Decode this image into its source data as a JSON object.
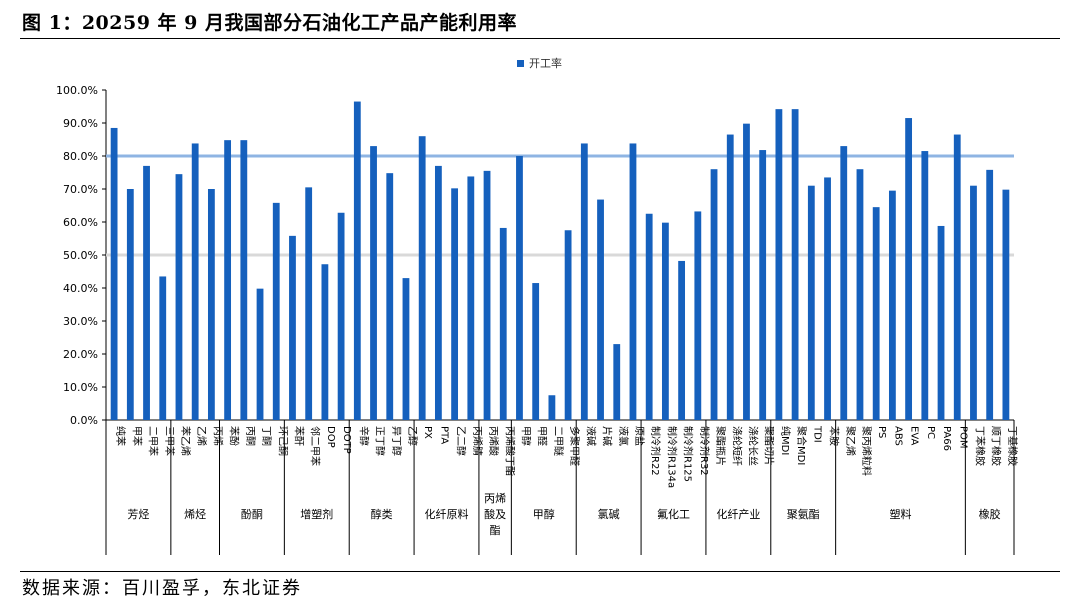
{
  "figure_title": "图 1：20259 年 9 月我国部分石油化工产品产能利用率",
  "source_note": "数据来源：百川盈孚，东北证券",
  "chart_data": {
    "type": "bar",
    "series": [
      {
        "name": "开工率",
        "color": "#1560bd"
      }
    ],
    "ylim": [
      0,
      100
    ],
    "yticks": [
      "0.0%",
      "10.0%",
      "20.0%",
      "30.0%",
      "40.0%",
      "50.0%",
      "60.0%",
      "70.0%",
      "80.0%",
      "90.0%",
      "100.0%"
    ],
    "reference_lines": [
      {
        "value": 80,
        "color": "#8eb4e3"
      },
      {
        "value": 50,
        "color": "#d9d9d9"
      }
    ],
    "groups": [
      {
        "name": "芳烃",
        "items": [
          {
            "label": "纯苯",
            "value": 88.5
          },
          {
            "label": "甲苯",
            "value": 70.0
          },
          {
            "label": "二甲苯",
            "value": 77.0
          },
          {
            "label": "三甲苯",
            "value": 43.5
          }
        ]
      },
      {
        "name": "烯烃",
        "items": [
          {
            "label": "苯乙烯",
            "value": 74.5
          },
          {
            "label": "乙烯",
            "value": 83.8
          },
          {
            "label": "丙烯",
            "value": 70.0
          }
        ]
      },
      {
        "name": "酚酮",
        "items": [
          {
            "label": "苯酚",
            "value": 84.8
          },
          {
            "label": "丙酮",
            "value": 84.8
          },
          {
            "label": "丁酮",
            "value": 39.8
          },
          {
            "label": "环己酮",
            "value": 65.8
          }
        ]
      },
      {
        "name": "增塑剂",
        "items": [
          {
            "label": "苯酐",
            "value": 55.8
          },
          {
            "label": "邻二甲苯",
            "value": 70.5
          },
          {
            "label": "DOP",
            "value": 47.2
          },
          {
            "label": "DOTP",
            "value": 62.8
          }
        ]
      },
      {
        "name": "醇类",
        "items": [
          {
            "label": "辛醇",
            "value": 96.5
          },
          {
            "label": "正丁醇",
            "value": 83.0
          },
          {
            "label": "异丁醇",
            "value": 74.8
          },
          {
            "label": "乙醇",
            "value": 43.0
          }
        ]
      },
      {
        "name": "化纤原料",
        "items": [
          {
            "label": "PX",
            "value": 86.0
          },
          {
            "label": "PTA",
            "value": 77.0
          },
          {
            "label": "乙二醇",
            "value": 70.2
          },
          {
            "label": "丙烯腈",
            "value": 73.8
          }
        ]
      },
      {
        "name": "丙烯酸及酯",
        "items": [
          {
            "label": "丙烯酸",
            "value": 75.5
          },
          {
            "label": "丙烯酸丁酯",
            "value": 58.2
          }
        ]
      },
      {
        "name": "甲醇",
        "items": [
          {
            "label": "甲醇",
            "value": 80.0
          },
          {
            "label": "甲醛",
            "value": 41.5
          },
          {
            "label": "二甲醚",
            "value": 7.5
          },
          {
            "label": "多聚甲醛",
            "value": 57.5
          }
        ]
      },
      {
        "name": "氯碱",
        "items": [
          {
            "label": "液碱",
            "value": 83.8
          },
          {
            "label": "片碱",
            "value": 66.8
          },
          {
            "label": "液氯",
            "value": 23.0
          },
          {
            "label": "原盐",
            "value": 83.8
          }
        ]
      },
      {
        "name": "氟化工",
        "items": [
          {
            "label": "制冷剂R22",
            "value": 62.5
          },
          {
            "label": "制冷剂R134a",
            "value": 59.8
          },
          {
            "label": "制冷剂R125",
            "value": 48.2
          },
          {
            "label": "制冷剂R32",
            "value": 63.2
          }
        ]
      },
      {
        "name": "化纤产业",
        "items": [
          {
            "label": "聚酯瓶片",
            "value": 76.0
          },
          {
            "label": "涤纶短纤",
            "value": 86.5
          },
          {
            "label": "涤纶长丝",
            "value": 89.8
          },
          {
            "label": "聚酯切片",
            "value": 81.8
          }
        ]
      },
      {
        "name": "聚氨酯",
        "items": [
          {
            "label": "纯MDI",
            "value": 94.2
          },
          {
            "label": "聚合MDI",
            "value": 94.2
          },
          {
            "label": "TDI",
            "value": 71.0
          },
          {
            "label": "苯胺",
            "value": 73.5
          }
        ]
      },
      {
        "name": "塑料",
        "items": [
          {
            "label": "聚乙烯",
            "value": 83.0
          },
          {
            "label": "聚丙烯粒料",
            "value": 76.0
          },
          {
            "label": "PS",
            "value": 64.5
          },
          {
            "label": "ABS",
            "value": 69.5
          },
          {
            "label": "EVA",
            "value": 91.5
          },
          {
            "label": "PC",
            "value": 81.5
          },
          {
            "label": "PA66",
            "value": 58.8
          },
          {
            "label": "POM",
            "value": 86.5
          }
        ]
      },
      {
        "name": "橡胶",
        "items": [
          {
            "label": "丁苯橡胶",
            "value": 71.0
          },
          {
            "label": "顺丁橡胶",
            "value": 75.8
          },
          {
            "label": "丁基橡胶",
            "value": 69.8
          }
        ]
      }
    ]
  }
}
